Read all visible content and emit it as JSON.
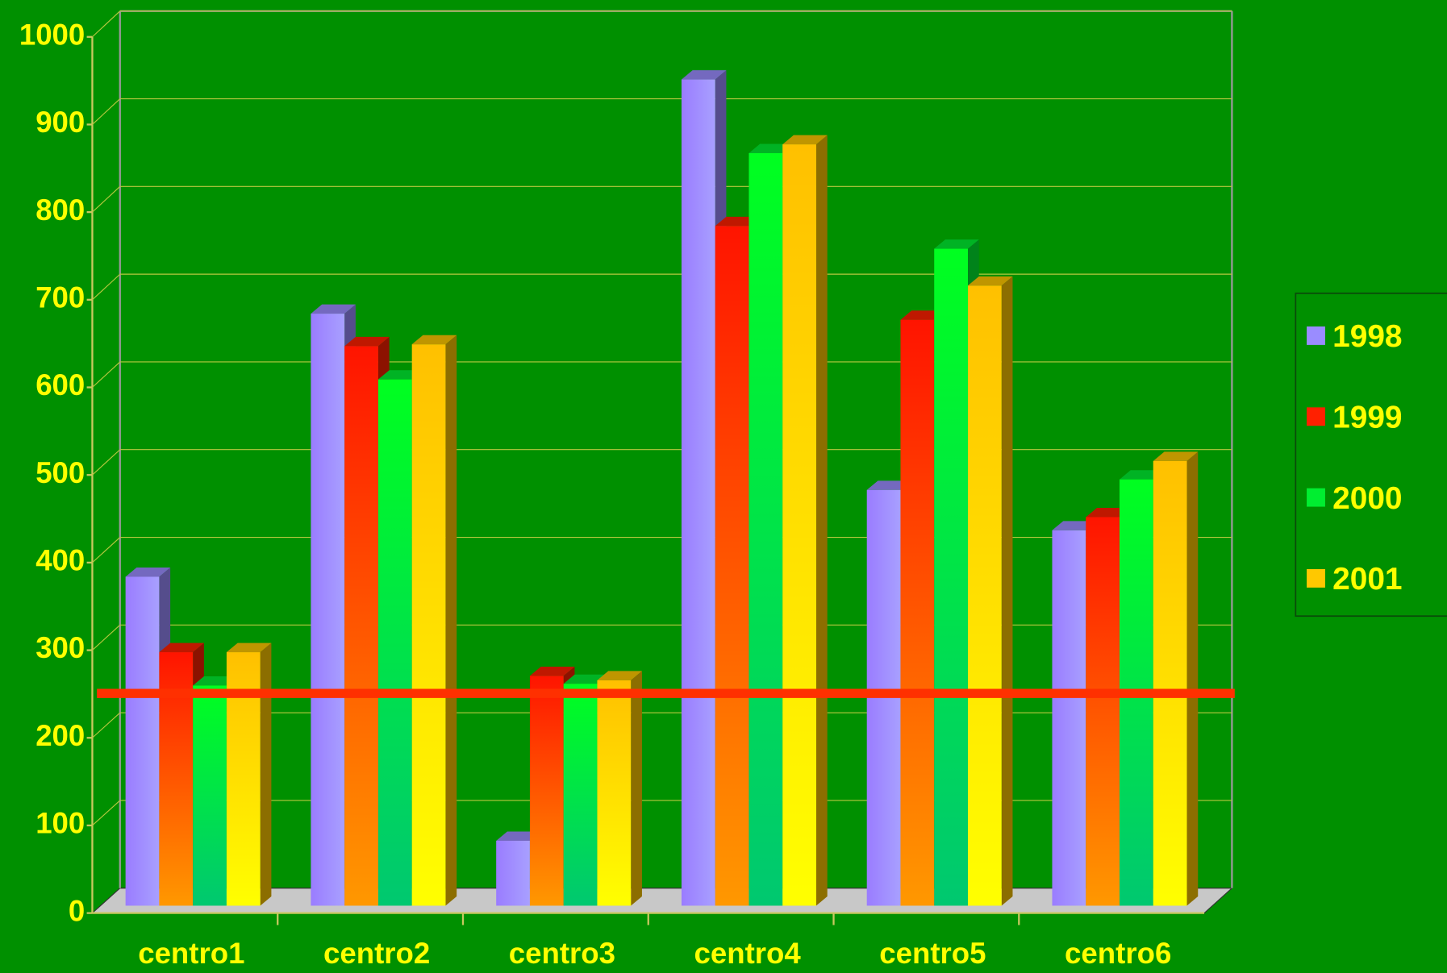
{
  "chart_data": {
    "type": "bar3d",
    "categories": [
      "centro1",
      "centro2",
      "centro3",
      "centro4",
      "centro5",
      "centro6"
    ],
    "series": [
      {
        "name": "1998",
        "color": "#9a8cff",
        "values": [
          375,
          675,
          74,
          942,
          474,
          428
        ]
      },
      {
        "name": "1999",
        "color": "#ff2000",
        "values": [
          289,
          638,
          262,
          775,
          668,
          443
        ]
      },
      {
        "name": "2000",
        "color": "#00ee30",
        "values": [
          251,
          600,
          253,
          858,
          749,
          486
        ]
      },
      {
        "name": "2001",
        "color": "#ffc800",
        "values": [
          289,
          640,
          257,
          868,
          707,
          507
        ]
      }
    ],
    "reference_line": 242,
    "reference_color": "#ff3000",
    "ylim": [
      0,
      1000
    ],
    "yticks": [
      0,
      100,
      200,
      300,
      400,
      500,
      600,
      700,
      800,
      900,
      1000
    ],
    "grid": true,
    "legend": "right"
  }
}
